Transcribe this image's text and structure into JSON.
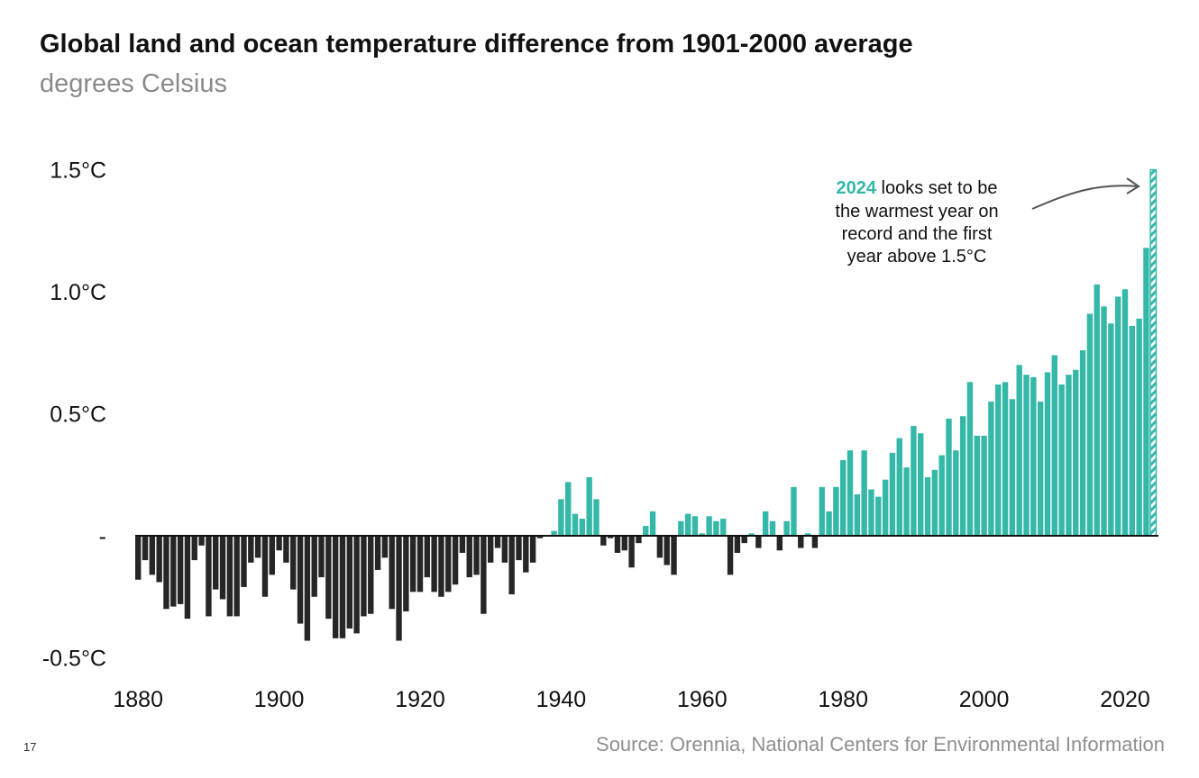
{
  "chart_data": {
    "type": "bar",
    "title": "Global land and ocean temperature difference from 1901-2000 average",
    "subtitle": "degrees Celsius",
    "xlabel": "",
    "ylabel": "",
    "ylim": [
      -0.5,
      1.5
    ],
    "y_ticks": [
      {
        "value": 1.5,
        "label": "1.5°C"
      },
      {
        "value": 1.0,
        "label": "1.0°C"
      },
      {
        "value": 0.5,
        "label": "0.5°C"
      },
      {
        "value": 0,
        "label": "-"
      },
      {
        "value": -0.5,
        "label": "-0.5°C"
      }
    ],
    "x_ticks": [
      {
        "value": 1880,
        "label": "1880"
      },
      {
        "value": 1900,
        "label": "1900"
      },
      {
        "value": 1920,
        "label": "1920"
      },
      {
        "value": 1940,
        "label": "1940"
      },
      {
        "value": 1960,
        "label": "1960"
      },
      {
        "value": 1980,
        "label": "1980"
      },
      {
        "value": 2000,
        "label": "2000"
      },
      {
        "value": 2020,
        "label": "2020"
      }
    ],
    "start_year": 1880,
    "values": [
      -0.18,
      -0.1,
      -0.16,
      -0.19,
      -0.3,
      -0.29,
      -0.28,
      -0.34,
      -0.1,
      -0.04,
      -0.33,
      -0.22,
      -0.26,
      -0.33,
      -0.33,
      -0.21,
      -0.11,
      -0.09,
      -0.25,
      -0.16,
      -0.06,
      -0.11,
      -0.22,
      -0.36,
      -0.43,
      -0.25,
      -0.17,
      -0.34,
      -0.42,
      -0.42,
      -0.38,
      -0.4,
      -0.33,
      -0.32,
      -0.14,
      -0.09,
      -0.3,
      -0.43,
      -0.31,
      -0.23,
      -0.23,
      -0.17,
      -0.23,
      -0.25,
      -0.23,
      -0.2,
      -0.07,
      -0.17,
      -0.16,
      -0.32,
      -0.11,
      -0.05,
      -0.11,
      -0.24,
      -0.1,
      -0.15,
      -0.11,
      -0.01,
      0.0,
      0.02,
      0.15,
      0.22,
      0.09,
      0.07,
      0.24,
      0.15,
      -0.04,
      -0.01,
      -0.07,
      -0.06,
      -0.13,
      -0.03,
      0.04,
      0.1,
      -0.09,
      -0.12,
      -0.16,
      0.06,
      0.09,
      0.08,
      0.01,
      0.08,
      0.06,
      0.07,
      -0.16,
      -0.07,
      -0.03,
      0.01,
      -0.05,
      0.1,
      0.06,
      -0.06,
      0.06,
      0.2,
      -0.05,
      0.01,
      -0.05,
      0.2,
      0.1,
      0.2,
      0.31,
      0.35,
      0.17,
      0.35,
      0.19,
      0.16,
      0.23,
      0.34,
      0.4,
      0.28,
      0.45,
      0.42,
      0.24,
      0.27,
      0.33,
      0.48,
      0.35,
      0.49,
      0.63,
      0.41,
      0.41,
      0.55,
      0.62,
      0.63,
      0.56,
      0.7,
      0.66,
      0.65,
      0.55,
      0.67,
      0.74,
      0.62,
      0.66,
      0.68,
      0.76,
      0.91,
      1.03,
      0.94,
      0.87,
      0.98,
      1.01,
      0.86,
      0.89,
      1.18,
      1.5
    ],
    "projected_years": [
      2024
    ],
    "colors": {
      "negative": "#262626",
      "positive": "#35b8a8",
      "projected": "#35b8a8"
    },
    "annotation": {
      "highlight": "2024",
      "lines": [
        " looks set to be",
        "the warmest year on",
        "record and the first",
        "year above 1.5°C"
      ]
    },
    "source": "Source: Orennia, National Centers for Environmental Information",
    "page_number": "17"
  }
}
